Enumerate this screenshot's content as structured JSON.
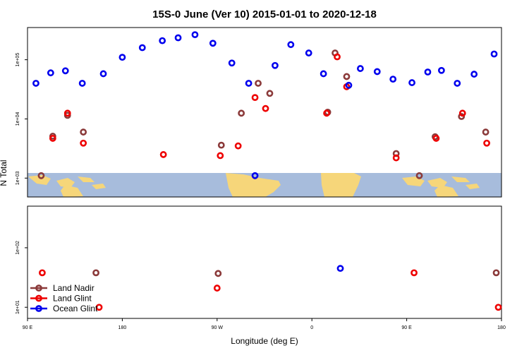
{
  "chart_data": {
    "type": "scatter",
    "title": "15S-0 June (Ver 10)   2015-01-01 to 2020-12-18",
    "xlabel": "Longitude (deg E)",
    "ylabel": "N Total",
    "x_ticks": [
      {
        "value": 90,
        "label": "90 E"
      },
      {
        "value": 180,
        "label": "180"
      },
      {
        "value": 270,
        "label": "90 W"
      },
      {
        "value": 360,
        "label": "0"
      },
      {
        "value": 450,
        "label": "90 E"
      },
      {
        "value": 540,
        "label": "180"
      }
    ],
    "xlim": [
      90,
      540
    ],
    "panels": [
      {
        "name": "upper",
        "y_log": true,
        "ylim": [
          480,
          350000
        ],
        "y_ticks": [
          {
            "value": 1000,
            "label": "1e+03"
          },
          {
            "value": 10000,
            "label": "1e+04"
          },
          {
            "value": 100000,
            "label": "1e+05"
          }
        ]
      },
      {
        "name": "lower",
        "y_log": true,
        "ylim": [
          6.5,
          500
        ],
        "y_ticks": [
          {
            "value": 10,
            "label": "1e+01"
          },
          {
            "value": 100,
            "label": "1e+02"
          }
        ]
      }
    ],
    "series": [
      {
        "name": "Land Nadir",
        "color": "#8B3A3A",
        "upper": [
          [
            103,
            1100
          ],
          [
            114,
            5100
          ],
          [
            128,
            11500
          ],
          [
            143,
            6000
          ],
          [
            274,
            3600
          ],
          [
            293,
            12500
          ],
          [
            309,
            40000
          ],
          [
            320,
            27000
          ],
          [
            375,
            13000
          ],
          [
            382,
            130000
          ],
          [
            393,
            52000
          ],
          [
            440,
            2600
          ],
          [
            462,
            1100
          ],
          [
            477,
            5000
          ],
          [
            502,
            11000
          ],
          [
            525,
            6000
          ]
        ],
        "lower": [
          [
            155,
            38
          ],
          [
            271,
            37
          ],
          [
            535,
            38
          ]
        ]
      },
      {
        "name": "Land Glint",
        "color": "#EE0000",
        "upper": [
          [
            114,
            4700
          ],
          [
            128,
            12500
          ],
          [
            143,
            3900
          ],
          [
            219,
            2500
          ],
          [
            273,
            2400
          ],
          [
            290,
            3500
          ],
          [
            306,
            23000
          ],
          [
            316,
            15000
          ],
          [
            374,
            12500
          ],
          [
            384,
            112000
          ],
          [
            393,
            35000
          ],
          [
            440,
            2200
          ],
          [
            478,
            4700
          ],
          [
            503,
            12500
          ],
          [
            526,
            3900
          ]
        ],
        "lower": [
          [
            104,
            38
          ],
          [
            158,
            10
          ],
          [
            270,
            21
          ],
          [
            457,
            38
          ],
          [
            537,
            10
          ]
        ]
      },
      {
        "name": "Ocean Glint",
        "color": "#0000EE",
        "upper": [
          [
            98,
            40000
          ],
          [
            112,
            60000
          ],
          [
            126,
            65000
          ],
          [
            142,
            40000
          ],
          [
            162,
            58000
          ],
          [
            180,
            110000
          ],
          [
            199,
            160000
          ],
          [
            218,
            210000
          ],
          [
            233,
            235000
          ],
          [
            249,
            265000
          ],
          [
            266,
            190000
          ],
          [
            284,
            88000
          ],
          [
            300,
            40000
          ],
          [
            306,
            1100
          ],
          [
            325,
            80000
          ],
          [
            340,
            180000
          ],
          [
            357,
            130000
          ],
          [
            371,
            58000
          ],
          [
            395,
            37000
          ],
          [
            406,
            71000
          ],
          [
            422,
            63000
          ],
          [
            437,
            47000
          ],
          [
            455,
            41000
          ],
          [
            470,
            62000
          ],
          [
            483,
            66000
          ],
          [
            498,
            40000
          ],
          [
            514,
            57000
          ],
          [
            533,
            125000
          ]
        ],
        "lower": [
          [
            387,
            45
          ]
        ]
      }
    ],
    "legend_position": "bottom-left",
    "background_map": "world map strip (ocean blue, land yellow) behind the upper panel bottom, 15S-0 latitude band"
  }
}
